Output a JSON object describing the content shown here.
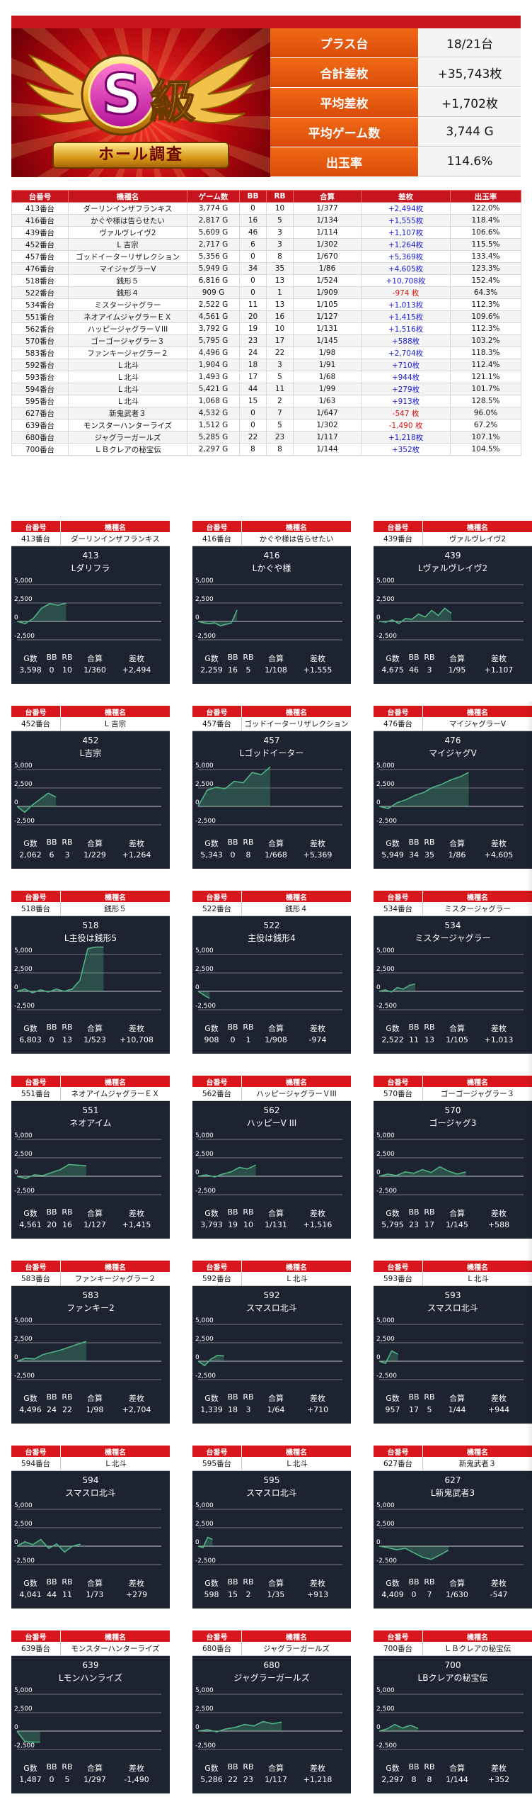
{
  "banner": {
    "logo_text": "S級",
    "subtitle": "ホール調査"
  },
  "summary": [
    {
      "label": "プラス台",
      "value": "18/21台"
    },
    {
      "label": "合計差枚",
      "value": "+35,743枚"
    },
    {
      "label": "平均差枚",
      "value": "+1,702枚"
    },
    {
      "label": "平均ゲーム数",
      "value": "3,744 G"
    },
    {
      "label": "出玉率",
      "value": "114.6%"
    }
  ],
  "table": {
    "headers": [
      "台番号",
      "機種名",
      "ゲーム数",
      "BB",
      "RB",
      "合算",
      "差枚",
      "出玉率"
    ],
    "rows": [
      [
        "413番台",
        "ダーリンインザフランキス",
        "3,774 G",
        "0",
        "10",
        "1/377",
        "+2,494枚",
        "122.0%"
      ],
      [
        "416番台",
        "かぐや様は告らせたい",
        "2,817 G",
        "16",
        "5",
        "1/134",
        "+1,555枚",
        "118.4%"
      ],
      [
        "439番台",
        "ヴァルヴレイヴ2",
        "5,609 G",
        "46",
        "3",
        "1/114",
        "+1,107枚",
        "106.6%"
      ],
      [
        "452番台",
        "L 吉宗",
        "2,717 G",
        "6",
        "3",
        "1/302",
        "+1,264枚",
        "115.5%"
      ],
      [
        "457番台",
        "ゴッドイーターリザレクション",
        "5,356 G",
        "0",
        "8",
        "1/670",
        "+5,369枚",
        "133.4%"
      ],
      [
        "476番台",
        "マイジャグラーV",
        "5,949 G",
        "34",
        "35",
        "1/86",
        "+4,605枚",
        "123.3%"
      ],
      [
        "518番台",
        "銭形５",
        "6,816 G",
        "0",
        "13",
        "1/524",
        "+10,708枚",
        "152.4%"
      ],
      [
        "522番台",
        "銭形４",
        "909 G",
        "0",
        "1",
        "1/909",
        "-974 枚",
        "64.3%"
      ],
      [
        "534番台",
        "ミスタージャグラー",
        "2,522 G",
        "11",
        "13",
        "1/105",
        "+1,013枚",
        "112.3%"
      ],
      [
        "551番台",
        "ネオアイムジャグラーＥＸ",
        "4,561 G",
        "20",
        "16",
        "1/127",
        "+1,415枚",
        "109.6%"
      ],
      [
        "562番台",
        "ハッピージャグラーＶIII",
        "3,792 G",
        "19",
        "10",
        "1/131",
        "+1,516枚",
        "112.3%"
      ],
      [
        "570番台",
        "ゴーゴージャグラー３",
        "5,795 G",
        "23",
        "17",
        "1/145",
        "+588枚",
        "103.2%"
      ],
      [
        "583番台",
        "ファンキージャグラー２",
        "4,496 G",
        "24",
        "22",
        "1/98",
        "+2,704枚",
        "118.3%"
      ],
      [
        "592番台",
        "Ｌ北斗",
        "1,904 G",
        "18",
        "3",
        "1/91",
        "+710枚",
        "112.4%"
      ],
      [
        "593番台",
        "Ｌ北斗",
        "1,493 G",
        "17",
        "5",
        "1/68",
        "+944枚",
        "121.1%"
      ],
      [
        "594番台",
        "Ｌ北斗",
        "5,421 G",
        "44",
        "11",
        "1/99",
        "+279枚",
        "101.7%"
      ],
      [
        "595番台",
        "Ｌ北斗",
        "1,068 G",
        "15",
        "2",
        "1/63",
        "+913枚",
        "128.5%"
      ],
      [
        "627番台",
        "新鬼武者３",
        "4,532 G",
        "0",
        "7",
        "1/647",
        "-547 枚",
        "96.0%"
      ],
      [
        "639番台",
        "モンスターハンターライズ",
        "1,512 G",
        "0",
        "5",
        "1/302",
        "-1,490 枚",
        "67.2%"
      ],
      [
        "680番台",
        "ジャグラーガールズ",
        "5,285 G",
        "22",
        "23",
        "1/117",
        "+1,218枚",
        "107.1%"
      ],
      [
        "700番台",
        "ＬＢクレアの秘宝伝",
        "2,297 G",
        "8",
        "8",
        "1/144",
        "+352枚",
        "104.5%"
      ]
    ]
  },
  "card_labels": {
    "unit_header": "台番号",
    "machine_header": "機種名",
    "stats_headers": [
      "G数",
      "BB",
      "RB",
      "合算",
      "差枚"
    ],
    "y_ticks": [
      "5,000",
      "2,500",
      "0",
      "-2,500"
    ]
  },
  "cards": [
    {
      "unit": "413番台",
      "machine": "ダーリンインザフランキス",
      "number": "413",
      "name": "Lダリフラ",
      "g": "3,598",
      "bb": "0",
      "rb": "10",
      "ratio": "1/360",
      "diff": "+2,494",
      "curve": [
        0,
        -300,
        400,
        1800,
        2400,
        2200,
        2494
      ],
      "end": 0.34
    },
    {
      "unit": "416番台",
      "machine": "かぐや様は告らせたい",
      "number": "416",
      "name": "Lかぐや様",
      "g": "2,259",
      "bb": "16",
      "rb": "5",
      "ratio": "1/108",
      "diff": "+1,555",
      "curve": [
        0,
        -200,
        -300,
        -200,
        -600,
        -400,
        -200,
        1555
      ],
      "end": 0.27
    },
    {
      "unit": "439番台",
      "machine": "ヴァルヴレイヴ2",
      "number": "439",
      "name": "Lヴァルヴレイヴ2",
      "g": "4,675",
      "bb": "46",
      "rb": "3",
      "ratio": "1/95",
      "diff": "+1,107",
      "curve": [
        0,
        -100,
        200,
        -300,
        400,
        300,
        1000,
        600,
        1500,
        800,
        1800,
        1107
      ],
      "end": 0.5
    },
    {
      "unit": "452番台",
      "machine": "L 吉宗",
      "number": "452",
      "name": "L吉宗",
      "g": "2,062",
      "bb": "6",
      "rb": "3",
      "ratio": "1/229",
      "diff": "+1,264",
      "curve": [
        0,
        -800,
        200,
        1000,
        1800,
        1264
      ],
      "end": 0.27
    },
    {
      "unit": "457番台",
      "machine": "ゴッドイーターリザレクション",
      "number": "457",
      "name": "Lゴッドイーター",
      "g": "5,343",
      "bb": "0",
      "rb": "8",
      "ratio": "1/668",
      "diff": "+5,369",
      "curve": [
        0,
        2200,
        2600,
        2400,
        3400,
        3200,
        4600,
        4300,
        5369
      ],
      "end": 0.5
    },
    {
      "unit": "476番台",
      "machine": "マイジャグラーV",
      "number": "476",
      "name": "マイジャグV",
      "g": "5,949",
      "bb": "34",
      "rb": "35",
      "ratio": "1/86",
      "diff": "+4,605",
      "curve": [
        0,
        -300,
        500,
        900,
        1500,
        1900,
        2600,
        3000,
        3600,
        4000,
        4605
      ],
      "end": 0.62
    },
    {
      "unit": "518番台",
      "machine": "銭形５",
      "number": "518",
      "name": "L主役は銭形5",
      "g": "6,803",
      "bb": "0",
      "rb": "13",
      "ratio": "1/523",
      "diff": "+10,708",
      "curve": [
        0,
        300,
        -200,
        200,
        -100,
        300,
        0,
        300,
        1500,
        5800,
        6000,
        6000
      ],
      "end": 0.6
    },
    {
      "unit": "522番台",
      "machine": "銭形４",
      "number": "522",
      "name": "主役は銭形4",
      "g": "908",
      "bb": "0",
      "rb": "1",
      "ratio": "1/908",
      "diff": "-974",
      "curve": [
        0,
        -500,
        -974
      ],
      "end": 0.08
    },
    {
      "unit": "534番台",
      "machine": "ミスタージャグラー",
      "number": "534",
      "name": "ミスタージャグラー",
      "g": "2,522",
      "bb": "11",
      "rb": "13",
      "ratio": "1/105",
      "diff": "+1,013",
      "curve": [
        0,
        200,
        -100,
        500,
        300,
        800,
        1013
      ],
      "end": 0.25
    },
    {
      "unit": "551番台",
      "machine": "ネオアイムジャグラーＥＸ",
      "number": "551",
      "name": "ネオアイム",
      "g": "4,561",
      "bb": "20",
      "rb": "16",
      "ratio": "1/127",
      "diff": "+1,415",
      "curve": [
        0,
        -300,
        200,
        100,
        500,
        900,
        1600,
        1500,
        1415
      ],
      "end": 0.48
    },
    {
      "unit": "562番台",
      "machine": "ハッピージャグラーＶIII",
      "number": "562",
      "name": "ハッピーV III",
      "g": "3,793",
      "bb": "19",
      "rb": "10",
      "ratio": "1/131",
      "diff": "+1,516",
      "curve": [
        0,
        200,
        -100,
        300,
        600,
        1200,
        1000,
        1516
      ],
      "end": 0.4
    },
    {
      "unit": "570番台",
      "machine": "ゴーゴージャグラー３",
      "number": "570",
      "name": "ゴージャグ3",
      "g": "5,795",
      "bb": "23",
      "rb": "17",
      "ratio": "1/145",
      "diff": "+588",
      "curve": [
        0,
        300,
        100,
        600,
        400,
        900,
        500,
        1300,
        700,
        300,
        588
      ],
      "end": 0.6
    },
    {
      "unit": "583番台",
      "machine": "ファンキージャグラー２",
      "number": "583",
      "name": "ファンキー2",
      "g": "4,496",
      "bb": "24",
      "rb": "22",
      "ratio": "1/98",
      "diff": "+2,704",
      "curve": [
        0,
        400,
        300,
        900,
        1200,
        1500,
        1900,
        2300,
        2704
      ],
      "end": 0.48
    },
    {
      "unit": "592番台",
      "machine": "Ｌ北斗",
      "number": "592",
      "name": "スマスロ北斗",
      "g": "1,339",
      "bb": "18",
      "rb": "3",
      "ratio": "1/64",
      "diff": "+710",
      "curve": [
        0,
        -600,
        300,
        800,
        710
      ],
      "end": 0.18
    },
    {
      "unit": "593番台",
      "machine": "Ｌ北斗",
      "number": "593",
      "name": "スマスロ北斗",
      "g": "957",
      "bb": "17",
      "rb": "5",
      "ratio": "1/44",
      "diff": "+944",
      "curve": [
        0,
        -300,
        1400,
        944
      ],
      "end": 0.13
    },
    {
      "unit": "594番台",
      "machine": "Ｌ北斗",
      "number": "594",
      "name": "スマスロ北斗",
      "g": "4,041",
      "bb": "44",
      "rb": "11",
      "ratio": "1/73",
      "diff": "+279",
      "curve": [
        0,
        600,
        200,
        900,
        -300,
        300,
        -800,
        0,
        279
      ],
      "end": 0.44
    },
    {
      "unit": "595番台",
      "machine": "Ｌ北斗",
      "number": "595",
      "name": "スマスロ北斗",
      "g": "598",
      "bb": "15",
      "rb": "2",
      "ratio": "1/35",
      "diff": "+913",
      "curve": [
        0,
        -200,
        1200,
        913
      ],
      "end": 0.1
    },
    {
      "unit": "627番台",
      "machine": "新鬼武者３",
      "number": "627",
      "name": "L新鬼武者3",
      "g": "4,409",
      "bb": "0",
      "rb": "7",
      "ratio": "1/630",
      "diff": "-547",
      "curve": [
        0,
        -200,
        -500,
        -300,
        -900,
        -1500,
        -1800,
        -1200,
        -547
      ],
      "end": 0.48
    },
    {
      "unit": "639番台",
      "machine": "モンスターハンターライズ",
      "number": "639",
      "name": "Lモンハンライズ",
      "g": "1,487",
      "bb": "0",
      "rb": "5",
      "ratio": "1/297",
      "diff": "-1,490",
      "curve": [
        0,
        -1400,
        -1500,
        -1490
      ],
      "end": 0.16
    },
    {
      "unit": "680番台",
      "machine": "ジャグラーガールズ",
      "number": "680",
      "name": "ジャグラーガールズ",
      "g": "5,286",
      "bb": "22",
      "rb": "23",
      "ratio": "1/117",
      "diff": "+1,218",
      "curve": [
        0,
        200,
        -100,
        300,
        500,
        900,
        700,
        1300,
        1000,
        1218
      ],
      "end": 0.58
    },
    {
      "unit": "700番台",
      "machine": "ＬＢクレアの秘宝伝",
      "number": "700",
      "name": "LBクレアの秘宝伝",
      "g": "2,297",
      "bb": "8",
      "rb": "8",
      "ratio": "1/144",
      "diff": "+352",
      "curve": [
        0,
        300,
        900,
        400,
        800,
        352
      ],
      "end": 0.27
    }
  ],
  "colors": {
    "header_red": "#c8141c",
    "summary_orange": "#e8590c",
    "card_bg": "#1e2331",
    "graph_line": "#4fb483",
    "plus": "#1a1adc",
    "minus": "#e01010"
  }
}
